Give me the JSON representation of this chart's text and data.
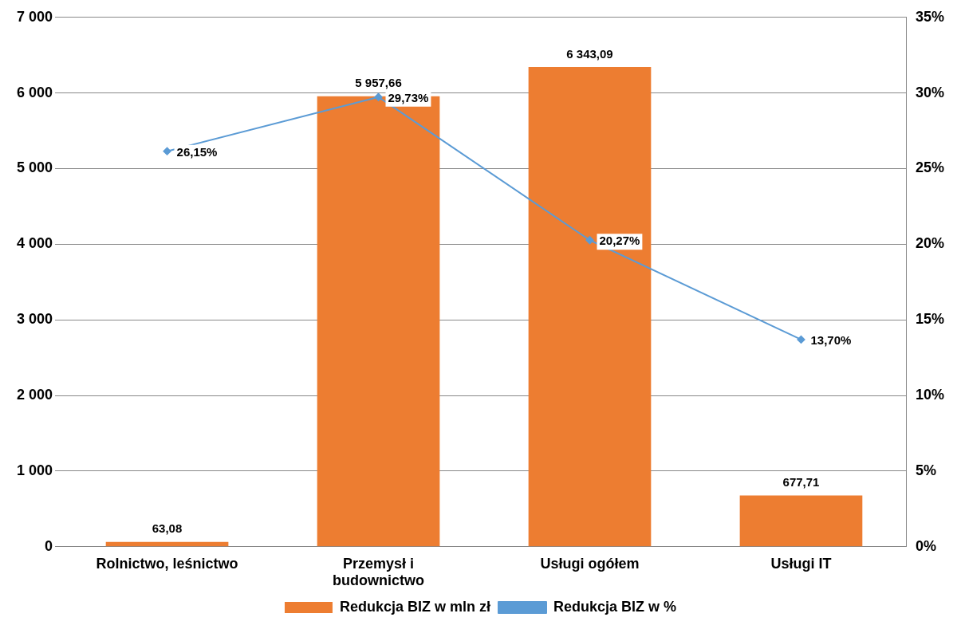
{
  "chart_data": {
    "type": "bar",
    "categories": [
      "Rolnictwo, leśnictwo",
      "Przemysł i budownictwo",
      "Usługi ogółem",
      "Usługi IT"
    ],
    "series": [
      {
        "name": "Redukcja BIZ w mln zł",
        "color": "#ed7d31",
        "values": [
          63.08,
          5957.66,
          6343.09,
          677.71
        ],
        "value_labels": [
          "63,08",
          "5 957,66",
          "6 343,09",
          "677,71"
        ]
      },
      {
        "name": "Redukcja BIZ w %",
        "type": "line",
        "axis": "y2",
        "color": "#5b9bd5",
        "marker": "diamond",
        "values": [
          26.15,
          29.73,
          20.27,
          13.7
        ],
        "value_labels": [
          "26,15%",
          "29,73%",
          "20,27%",
          "13,70%"
        ]
      }
    ],
    "ylim": [
      0,
      7000
    ],
    "yticks": [
      0,
      {
        "value": 1000,
        "label": "1 000"
      },
      {
        "value": 2000,
        "label": "2 000"
      },
      {
        "value": 3000,
        "label": "3 000"
      },
      {
        "value": 4000,
        "label": "4 000"
      },
      {
        "value": 5000,
        "label": "5 000"
      },
      {
        "value": 6000,
        "label": "6 000"
      },
      {
        "value": 7000,
        "label": "7 000"
      }
    ],
    "y2lim": [
      0,
      35
    ],
    "y2ticks": [
      {
        "value": 0,
        "label": "0%"
      },
      {
        "value": 5,
        "label": "5%"
      },
      {
        "value": 10,
        "label": "10%"
      },
      {
        "value": 15,
        "label": "15%"
      },
      {
        "value": 20,
        "label": "20%"
      },
      {
        "value": 25,
        "label": "25%"
      },
      {
        "value": 30,
        "label": "30%"
      },
      {
        "value": 35,
        "label": "35%"
      }
    ],
    "grid": "y",
    "legend": "bottom"
  }
}
